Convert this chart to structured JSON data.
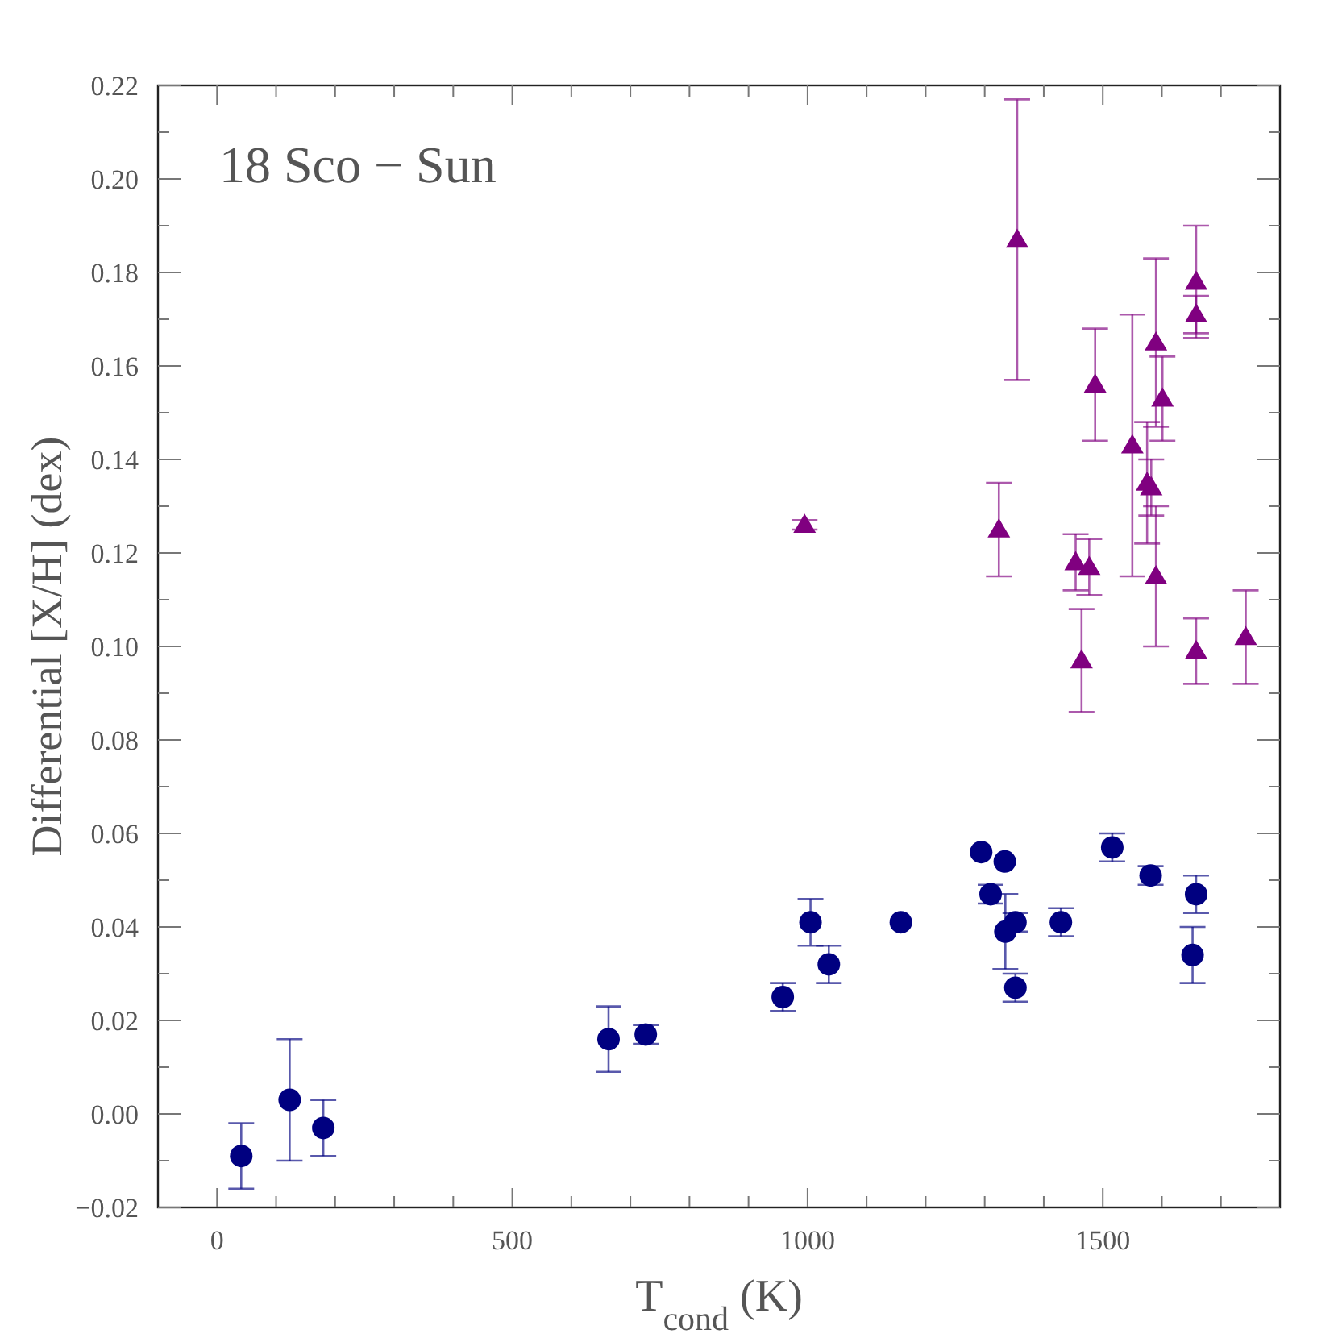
{
  "chart_data": {
    "type": "scatter",
    "title": "18 Sco − Sun",
    "xlabel": "T$_{cond}$ (K)",
    "ylabel": "Differential [X/H] (dex)",
    "xlim": [
      -100,
      1800
    ],
    "ylim": [
      -0.02,
      0.22
    ],
    "xticks": [
      {
        "value": 0,
        "label": "0"
      },
      {
        "value": 100,
        "label": null
      },
      {
        "value": 200,
        "label": null
      },
      {
        "value": 300,
        "label": null
      },
      {
        "value": 400,
        "label": null
      },
      {
        "value": 500,
        "label": "500"
      },
      {
        "value": 600,
        "label": null
      },
      {
        "value": 700,
        "label": null
      },
      {
        "value": 800,
        "label": null
      },
      {
        "value": 900,
        "label": null
      },
      {
        "value": 1000,
        "label": "1000"
      },
      {
        "value": 1100,
        "label": null
      },
      {
        "value": 1200,
        "label": null
      },
      {
        "value": 1300,
        "label": null
      },
      {
        "value": 1400,
        "label": null
      },
      {
        "value": 1500,
        "label": "1500"
      },
      {
        "value": 1600,
        "label": null
      },
      {
        "value": 1700,
        "label": null
      }
    ],
    "yticks": [
      {
        "value": -0.02,
        "label": "−0.02"
      },
      {
        "value": -0.01,
        "label": null
      },
      {
        "value": 0,
        "label": "0.00"
      },
      {
        "value": 0.01,
        "label": null
      },
      {
        "value": 0.02,
        "label": "0.02"
      },
      {
        "value": 0.03,
        "label": null
      },
      {
        "value": 0.04,
        "label": "0.04"
      },
      {
        "value": 0.05,
        "label": null
      },
      {
        "value": 0.06,
        "label": "0.06"
      },
      {
        "value": 0.07,
        "label": null
      },
      {
        "value": 0.08,
        "label": "0.08"
      },
      {
        "value": 0.09,
        "label": null
      },
      {
        "value": 0.1,
        "label": "0.10"
      },
      {
        "value": 0.11,
        "label": null
      },
      {
        "value": 0.12,
        "label": "0.12"
      },
      {
        "value": 0.13,
        "label": null
      },
      {
        "value": 0.14,
        "label": "0.14"
      },
      {
        "value": 0.15,
        "label": null
      },
      {
        "value": 0.16,
        "label": "0.16"
      },
      {
        "value": 0.17,
        "label": null
      },
      {
        "value": 0.18,
        "label": "0.18"
      },
      {
        "value": 0.19,
        "label": null
      },
      {
        "value": 0.2,
        "label": "0.20"
      },
      {
        "value": 0.21,
        "label": null
      },
      {
        "value": 0.22,
        "label": "0.22"
      }
    ],
    "series": [
      {
        "color": "#000080",
        "marker": "circle",
        "x": [
          41,
          123,
          180,
          663,
          726,
          958,
          1005,
          1036,
          1158,
          1294,
          1334,
          1310,
          1335,
          1352,
          1352,
          1429,
          1516,
          1581,
          1658,
          1652
        ],
        "values": [
          -0.009,
          0.003,
          -0.003,
          0.016,
          0.017,
          0.025,
          0.041,
          0.032,
          0.041,
          0.056,
          0.054,
          0.047,
          0.039,
          0.041,
          0.027,
          0.041,
          0.057,
          0.051,
          0.047,
          0.034
        ],
        "errors": [
          0.007,
          0.013,
          0.006,
          0.007,
          0.002,
          0.003,
          0.005,
          0.004,
          null,
          null,
          null,
          0.002,
          0.008,
          0.002,
          0.003,
          0.003,
          0.003,
          0.002,
          0.004,
          0.006
        ]
      },
      {
        "color": "#800080",
        "marker": "triangle",
        "x": [
          995,
          1355,
          1324,
          1487,
          1550,
          1590,
          1601,
          1658,
          1658,
          1575,
          1582,
          1590,
          1454,
          1477,
          1464,
          1658,
          1742
        ],
        "values": [
          0.126,
          0.187,
          0.125,
          0.156,
          0.143,
          0.165,
          0.153,
          0.178,
          0.171,
          0.135,
          0.134,
          0.115,
          0.118,
          0.117,
          0.097,
          0.099,
          0.102
        ],
        "errors": [
          0.001,
          0.03,
          0.01,
          0.012,
          0.028,
          0.018,
          0.009,
          0.012,
          0.004,
          0.013,
          0.006,
          0.015,
          0.006,
          0.006,
          0.011,
          0.007,
          0.01
        ]
      }
    ]
  }
}
